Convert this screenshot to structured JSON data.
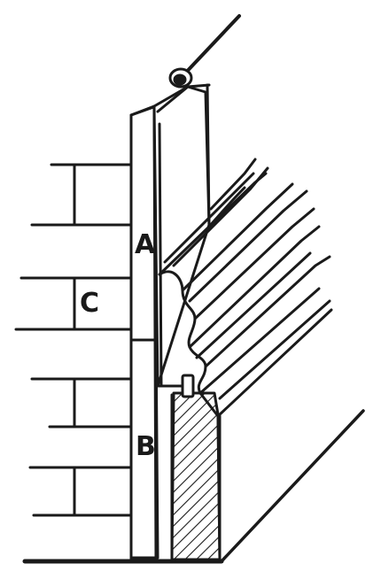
{
  "labels": {
    "a": "A",
    "b": "B",
    "c": "C"
  },
  "colors": {
    "ink": "#1a1a1a",
    "paper": "#ffffff"
  }
}
